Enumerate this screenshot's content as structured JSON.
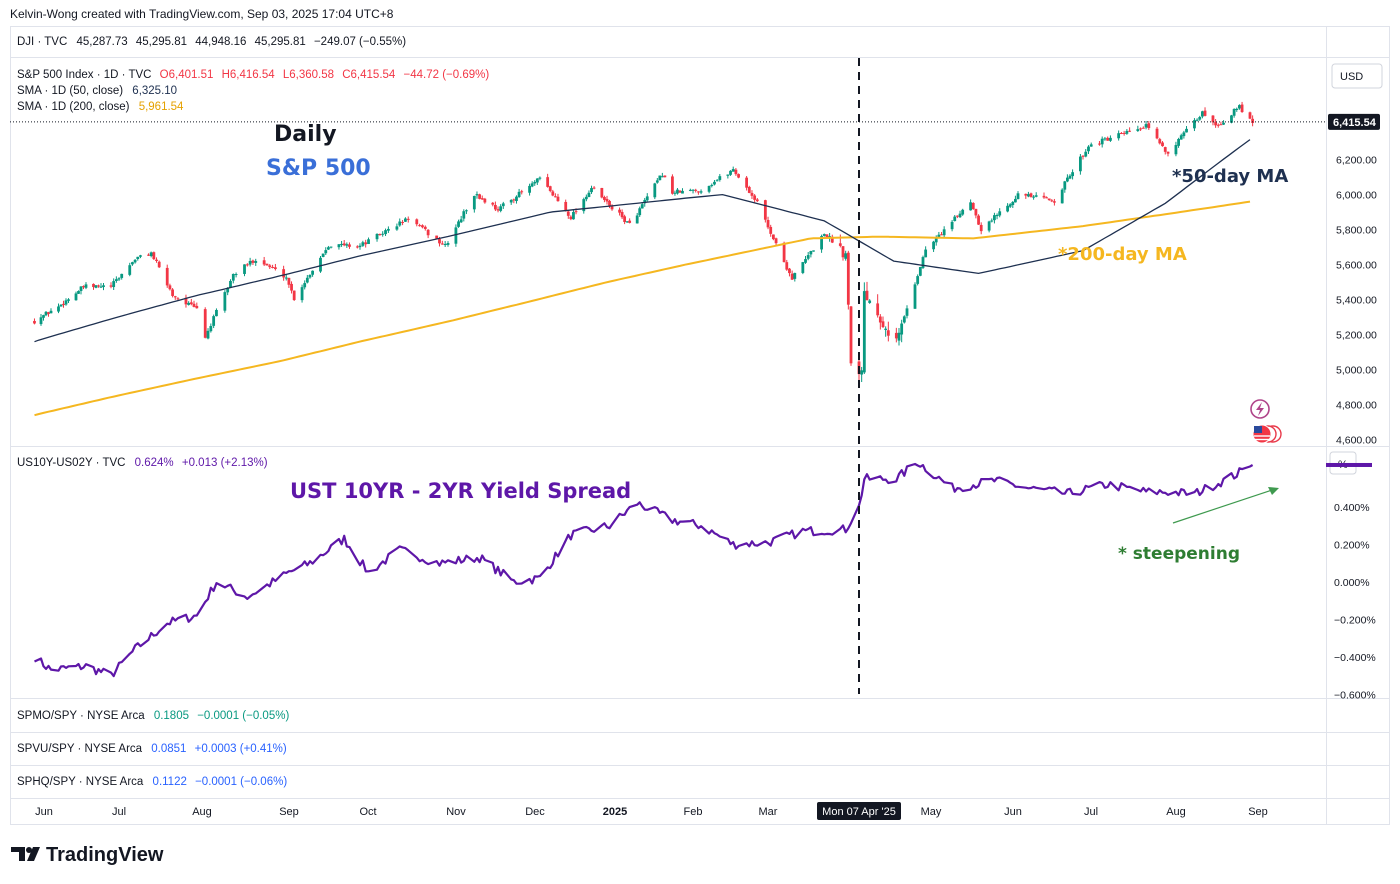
{
  "header": {
    "attribution": "Kelvin-Wong created with TradingView.com, Sep 03, 2025 17:04 UTC+8"
  },
  "dji_pane": {
    "symbol": "DJI · TVC",
    "open": "45,287.73",
    "high": "45,295.81",
    "low": "44,948.16",
    "close": "45,295.81",
    "change": "−249.07 (−0.55%)"
  },
  "spx_legend": {
    "symbol": "S&P 500 Index · 1D · TVC",
    "o": "O6,401.51",
    "h": "H6,416.54",
    "l": "L6,360.58",
    "c": "C6,415.54",
    "change": "−44.72 (−0.69%)",
    "sma50_label": "SMA · 1D (50, close)",
    "sma50_value": "6,325.10",
    "sma200_label": "SMA · 1D (200, close)",
    "sma200_value": "5,961.54"
  },
  "annotations": {
    "daily": "Daily",
    "index_name": "S&P 500",
    "ma50": "*50-day MA",
    "ma200": "*200-day MA",
    "spread_title": "UST 10YR - 2YR Yield Spread",
    "steepening": "* steepening"
  },
  "currency": "USD",
  "percent_unit": "%",
  "last_price_tag": "6,415.54",
  "date_marker": "Mon 07 Apr '25",
  "spread_legend": {
    "symbol": "US10Y-US02Y · TVC",
    "value": "0.624%",
    "change": "+0.013 (+2.13%)"
  },
  "ratio_panes": [
    {
      "symbol": "SPMO/SPY · NYSE Arca",
      "value": "0.1805",
      "change": "−0.0001 (−0.05%)"
    },
    {
      "symbol": "SPVU/SPY · NYSE Arca",
      "value": "0.0851",
      "change": "+0.0003 (+0.41%)"
    },
    {
      "symbol": "SPHQ/SPY · NYSE Arca",
      "value": "0.1122",
      "change": "−0.0001 (−0.06%)"
    }
  ],
  "brand": "TradingView",
  "colors": {
    "up": "#089981",
    "down": "#f23645",
    "sma50": "#1e3050",
    "sma200": "#f5b720",
    "spread": "#5e17a8",
    "index_blue": "#3a6fd8",
    "green_note": "#2e7d32"
  },
  "chart_data": [
    {
      "type": "candlestick",
      "title": "S&P 500 Index · 1D",
      "x_months": [
        "Jun",
        "Jul",
        "Aug",
        "Sep",
        "Oct",
        "Nov",
        "Dec",
        "2025",
        "Feb",
        "Mar",
        "Apr",
        "May",
        "Jun",
        "Jul",
        "Aug",
        "Sep"
      ],
      "y_ticks": [
        "4,600.00",
        "4,800.00",
        "5,000.00",
        "5,200.00",
        "5,400.00",
        "5,600.00",
        "5,800.00",
        "6,000.00",
        "6,200.00"
      ],
      "ylim": [
        4570,
        6780
      ],
      "close_path": [
        [
          "2024-05-31",
          5278
        ],
        [
          "2024-06-10",
          5360
        ],
        [
          "2024-06-20",
          5473
        ],
        [
          "2024-07-01",
          5475
        ],
        [
          "2024-07-10",
          5633
        ],
        [
          "2024-07-16",
          5667
        ],
        [
          "2024-07-24",
          5427
        ],
        [
          "2024-08-02",
          5346
        ],
        [
          "2024-08-05",
          5186
        ],
        [
          "2024-08-15",
          5543
        ],
        [
          "2024-08-23",
          5634
        ],
        [
          "2024-09-03",
          5529
        ],
        [
          "2024-09-06",
          5408
        ],
        [
          "2024-09-19",
          5713
        ],
        [
          "2024-10-01",
          5708
        ],
        [
          "2024-10-18",
          5864
        ],
        [
          "2024-10-31",
          5705
        ],
        [
          "2024-11-11",
          6001
        ],
        [
          "2024-11-20",
          5917
        ],
        [
          "2024-12-06",
          6090
        ],
        [
          "2024-12-18",
          5872
        ],
        [
          "2024-12-26",
          6037
        ],
        [
          "2025-01-10",
          5827
        ],
        [
          "2025-01-23",
          6118
        ],
        [
          "2025-01-27",
          6012
        ],
        [
          "2025-02-07",
          6025
        ],
        [
          "2025-02-19",
          6144
        ],
        [
          "2025-02-28",
          5954
        ],
        [
          "2025-03-10",
          5614
        ],
        [
          "2025-03-13",
          5522
        ],
        [
          "2025-03-25",
          5777
        ],
        [
          "2025-04-02",
          5670
        ],
        [
          "2025-04-04",
          5074
        ],
        [
          "2025-04-08",
          4982
        ],
        [
          "2025-04-09",
          5457
        ],
        [
          "2025-04-21",
          5158
        ],
        [
          "2025-05-02",
          5686
        ],
        [
          "2025-05-12",
          5844
        ],
        [
          "2025-05-19",
          5963
        ],
        [
          "2025-05-23",
          5802
        ],
        [
          "2025-06-06",
          6000
        ],
        [
          "2025-06-20",
          5967
        ],
        [
          "2025-07-03",
          6279
        ],
        [
          "2025-07-24",
          6389
        ],
        [
          "2025-08-01",
          6238
        ],
        [
          "2025-08-14",
          6468
        ],
        [
          "2025-08-20",
          6395
        ],
        [
          "2025-08-28",
          6502
        ],
        [
          "2025-09-02",
          6415
        ]
      ],
      "overlays": [
        {
          "name": "SMA 50",
          "points": [
            [
              "2024-05-31",
              5160
            ],
            [
              "2024-08-01",
              5420
            ],
            [
              "2024-10-01",
              5650
            ],
            [
              "2024-12-10",
              5900
            ],
            [
              "2025-02-15",
              6000
            ],
            [
              "2025-03-25",
              5850
            ],
            [
              "2025-04-20",
              5620
            ],
            [
              "2025-05-22",
              5550
            ],
            [
              "2025-07-01",
              5680
            ],
            [
              "2025-07-31",
              5950
            ],
            [
              "2025-08-20",
              6180
            ],
            [
              "2025-09-02",
              6325
            ]
          ]
        },
        {
          "name": "SMA 200",
          "points": [
            [
              "2024-05-31",
              4740
            ],
            [
              "2024-09-01",
              5050
            ],
            [
              "2025-01-01",
              5500
            ],
            [
              "2025-03-20",
              5750
            ],
            [
              "2025-04-15",
              5760
            ],
            [
              "2025-05-20",
              5750
            ],
            [
              "2025-07-01",
              5820
            ],
            [
              "2025-09-02",
              5962
            ]
          ]
        }
      ]
    },
    {
      "type": "line",
      "title": "US10Y-US02Y · TVC",
      "y_ticks": [
        "0.400%",
        "0.200%",
        "0.000%",
        "−0.200%",
        "−0.400%",
        "−0.600%"
      ],
      "ylim": [
        -0.62,
        0.72
      ],
      "series": [
        {
          "name": "US10Y-US02Y",
          "points": [
            [
              "2024-05-31",
              -0.4
            ],
            [
              "2024-06-07",
              -0.47
            ],
            [
              "2024-06-21",
              -0.45
            ],
            [
              "2024-07-01",
              -0.5
            ],
            [
              "2024-07-10",
              -0.36
            ],
            [
              "2024-07-22",
              -0.22
            ],
            [
              "2024-08-02",
              -0.18
            ],
            [
              "2024-08-09",
              0.0
            ],
            [
              "2024-08-20",
              -0.08
            ],
            [
              "2024-09-04",
              0.05
            ],
            [
              "2024-09-12",
              0.1
            ],
            [
              "2024-09-25",
              0.23
            ],
            [
              "2024-10-04",
              0.05
            ],
            [
              "2024-10-15",
              0.17
            ],
            [
              "2024-10-29",
              0.1
            ],
            [
              "2024-11-13",
              0.13
            ],
            [
              "2024-11-26",
              0.0
            ],
            [
              "2024-12-06",
              0.02
            ],
            [
              "2024-12-18",
              0.25
            ],
            [
              "2025-01-02",
              0.3
            ],
            [
              "2025-01-13",
              0.42
            ],
            [
              "2025-01-27",
              0.33
            ],
            [
              "2025-02-07",
              0.3
            ],
            [
              "2025-02-19",
              0.2
            ],
            [
              "2025-03-04",
              0.21
            ],
            [
              "2025-03-17",
              0.27
            ],
            [
              "2025-04-02",
              0.28
            ],
            [
              "2025-04-07",
              0.4
            ],
            [
              "2025-04-09",
              0.55
            ],
            [
              "2025-04-21",
              0.55
            ],
            [
              "2025-04-29",
              0.64
            ],
            [
              "2025-05-12",
              0.5
            ],
            [
              "2025-05-28",
              0.54
            ],
            [
              "2025-06-10",
              0.5
            ],
            [
              "2025-06-25",
              0.47
            ],
            [
              "2025-07-10",
              0.52
            ],
            [
              "2025-07-24",
              0.48
            ],
            [
              "2025-08-01",
              0.48
            ],
            [
              "2025-08-11",
              0.47
            ],
            [
              "2025-08-25",
              0.56
            ],
            [
              "2025-09-02",
              0.624
            ]
          ]
        }
      ],
      "annotations": [
        "UST 10YR - 2YR Yield Spread",
        "* steepening"
      ]
    }
  ]
}
